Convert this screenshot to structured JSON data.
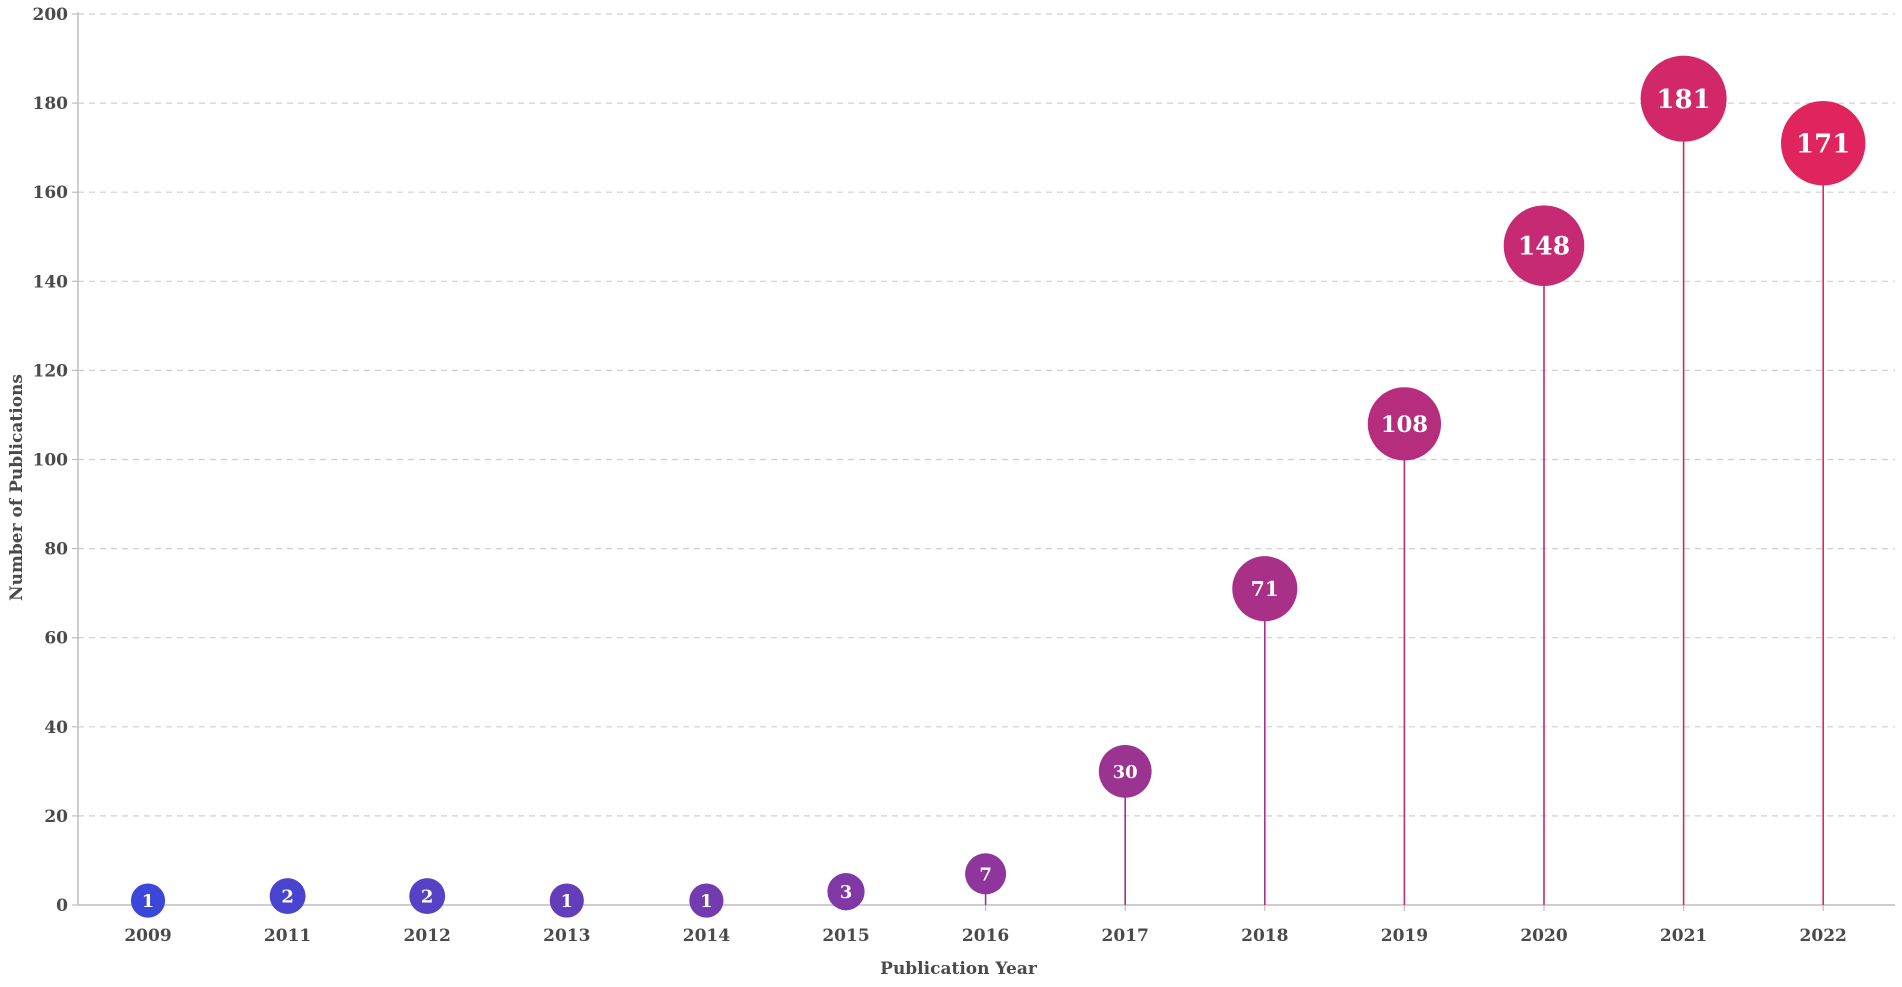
{
  "chart_data": {
    "type": "scatter",
    "style": "lollipop",
    "title": "",
    "xlabel": "Publication Year",
    "ylabel": "Number of Publications",
    "categories": [
      "2009",
      "2011",
      "2012",
      "2013",
      "2014",
      "2015",
      "2016",
      "2017",
      "2018",
      "2019",
      "2020",
      "2021",
      "2022"
    ],
    "values": [
      1,
      2,
      2,
      1,
      1,
      3,
      7,
      30,
      71,
      108,
      148,
      181,
      171
    ],
    "ylim": [
      0,
      200
    ],
    "yticks": [
      0,
      20,
      40,
      60,
      80,
      100,
      120,
      140,
      160,
      180,
      200
    ],
    "grid": "horizontal dashed",
    "legend": "none",
    "bubble_size_encodes": "value",
    "color_scale": [
      "#3b47d9",
      "#e0245e"
    ]
  }
}
